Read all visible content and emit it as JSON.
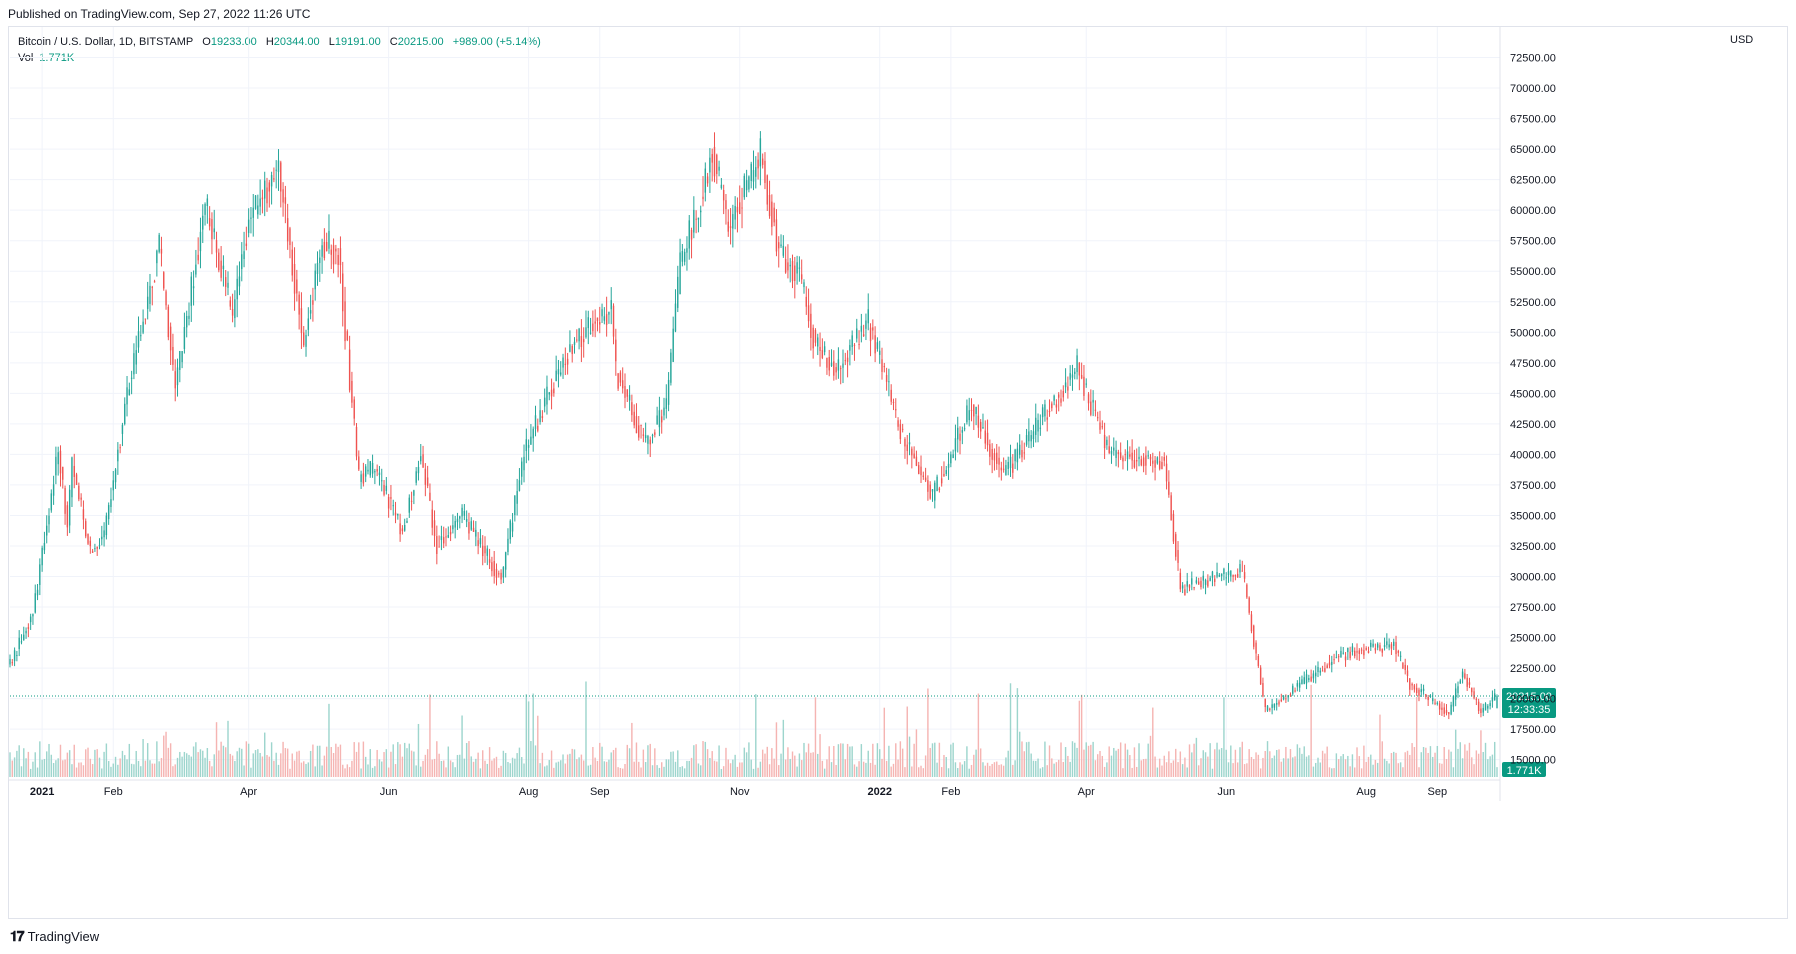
{
  "header": {
    "published": "Published on TradingView.com, Sep 27, 2022 11:26 UTC"
  },
  "legend": {
    "symbol": "Bitcoin / U.S. Dollar, 1D, BITSTAMP",
    "o_label": "O",
    "o_value": "19233.00",
    "h_label": "H",
    "h_value": "20344.00",
    "l_label": "L",
    "l_value": "19191.00",
    "c_label": "C",
    "c_value": "20215.00",
    "change": "+989.00 (+5.14%)",
    "vol_label": "Vol",
    "vol_value": "1.771K"
  },
  "price_axis": {
    "currency": "USD"
  },
  "badges": {
    "last_price": "20215.00",
    "countdown": "12:33:35",
    "volume": "1.771K"
  },
  "brand": {
    "name": "TradingView"
  },
  "colors": {
    "up": "#26a69a",
    "down": "#ef5350",
    "grid": "#f0f3fa",
    "badge": "#089981"
  },
  "chart_data": {
    "type": "candlestick",
    "symbol": "Bitcoin / U.S. Dollar",
    "interval": "1D",
    "exchange": "BITSTAMP",
    "ylim": [
      13500,
      75000
    ],
    "y_ticks": [
      15000,
      17500,
      20000,
      22500,
      25000,
      27500,
      30000,
      32500,
      35000,
      37500,
      40000,
      42500,
      45000,
      47500,
      50000,
      52500,
      55000,
      57500,
      60000,
      62500,
      65000,
      67500,
      70000,
      72500
    ],
    "x_ticks": [
      {
        "label": "2021",
        "date": "2021-01-01",
        "bold": true
      },
      {
        "label": "Feb",
        "date": "2021-02-01"
      },
      {
        "label": "Apr",
        "date": "2021-04-01"
      },
      {
        "label": "Jun",
        "date": "2021-06-01"
      },
      {
        "label": "Aug",
        "date": "2021-08-01"
      },
      {
        "label": "Sep",
        "date": "2021-09-01"
      },
      {
        "label": "Nov",
        "date": "2021-11-01"
      },
      {
        "label": "2022",
        "date": "2022-01-01",
        "bold": true
      },
      {
        "label": "Feb",
        "date": "2022-02-01"
      },
      {
        "label": "Apr",
        "date": "2022-04-01"
      },
      {
        "label": "Jun",
        "date": "2022-06-01"
      },
      {
        "label": "Aug",
        "date": "2022-08-01"
      },
      {
        "label": "Sep",
        "date": "2022-09-01"
      }
    ],
    "date_range": [
      "2020-12-18",
      "2022-09-27"
    ],
    "close_path": [
      [
        "2020-12-18",
        22800
      ],
      [
        "2020-12-28",
        27000
      ],
      [
        "2021-01-08",
        40500
      ],
      [
        "2021-01-12",
        34000
      ],
      [
        "2021-01-14",
        39000
      ],
      [
        "2021-01-22",
        32000
      ],
      [
        "2021-01-28",
        33500
      ],
      [
        "2021-02-08",
        46000
      ],
      [
        "2021-02-21",
        57000
      ],
      [
        "2021-02-28",
        45500
      ],
      [
        "2021-03-13",
        60500
      ],
      [
        "2021-03-25",
        51500
      ],
      [
        "2021-04-01",
        59000
      ],
      [
        "2021-04-14",
        63500
      ],
      [
        "2021-04-25",
        49000
      ],
      [
        "2021-05-03",
        57500
      ],
      [
        "2021-05-10",
        56500
      ],
      [
        "2021-05-19",
        38000
      ],
      [
        "2021-05-26",
        39000
      ],
      [
        "2021-06-07",
        33500
      ],
      [
        "2021-06-15",
        40000
      ],
      [
        "2021-06-22",
        32500
      ],
      [
        "2021-07-03",
        35000
      ],
      [
        "2021-07-20",
        29800
      ],
      [
        "2021-07-30",
        40000
      ],
      [
        "2021-08-13",
        46500
      ],
      [
        "2021-08-22",
        49500
      ],
      [
        "2021-09-06",
        52000
      ],
      [
        "2021-09-08",
        46800
      ],
      [
        "2021-09-21",
        40800
      ],
      [
        "2021-09-30",
        43800
      ],
      [
        "2021-10-06",
        55500
      ],
      [
        "2021-10-16",
        61500
      ],
      [
        "2021-10-20",
        65000
      ],
      [
        "2021-10-27",
        58500
      ],
      [
        "2021-11-10",
        64500
      ],
      [
        "2021-11-18",
        56900
      ],
      [
        "2021-11-27",
        54500
      ],
      [
        "2021-12-04",
        49000
      ],
      [
        "2021-12-13",
        46800
      ],
      [
        "2021-12-27",
        50800
      ],
      [
        "2022-01-10",
        41800
      ],
      [
        "2022-01-24",
        36500
      ],
      [
        "2022-02-10",
        44000
      ],
      [
        "2022-02-24",
        38200
      ],
      [
        "2022-03-28",
        47200
      ],
      [
        "2022-04-11",
        40000
      ],
      [
        "2022-05-05",
        39500
      ],
      [
        "2022-05-12",
        29000
      ],
      [
        "2022-06-08",
        30500
      ],
      [
        "2022-06-18",
        19000
      ],
      [
        "2022-07-08",
        21800
      ],
      [
        "2022-07-20",
        23500
      ],
      [
        "2022-08-13",
        24500
      ],
      [
        "2022-08-20",
        21200
      ],
      [
        "2022-09-06",
        18800
      ],
      [
        "2022-09-12",
        22200
      ],
      [
        "2022-09-20",
        18800
      ],
      [
        "2022-09-27",
        20215
      ]
    ],
    "last_candle": {
      "open": 19233.0,
      "high": 20344.0,
      "low": 19191.0,
      "close": 20215.0,
      "change": 989.0,
      "change_pct": 5.14
    },
    "volume_last": "1.771K"
  }
}
